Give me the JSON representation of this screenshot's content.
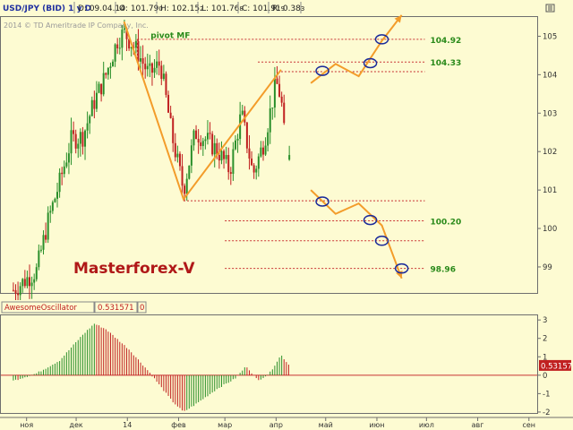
{
  "header": {
    "symbol": "USD/JPY (BID) 1 у D",
    "date": "D: 09.04.14",
    "open": "O: 101.79",
    "open_small": "0",
    "high": "H: 102.15",
    "high_small": "2",
    "low": "L: 101.76",
    "low_small": "8",
    "close": "C: 101.91",
    "close_small": "9",
    "range": "R: 0.38",
    "range_small": "3",
    "copyright": "2014 © TD Ameritrade IP Company, Inc."
  },
  "watermark": "Masterforex-V",
  "indicator_header": {
    "name": "AwesomeOscillator",
    "value": "0.531571",
    "suffix": "0"
  },
  "colors": {
    "background": "#fdfbd2",
    "bullish": "#2a8f2a",
    "bearish": "#c02020",
    "projection": "#f39c2a",
    "level": "#c83232",
    "label_green": "#2a8a1a",
    "watermark": "#b01818"
  },
  "chart_data": [
    {
      "type": "candlestick",
      "title": "USD/JPY (BID) 1 у D",
      "y_ticks": [
        99,
        100,
        101,
        102,
        103,
        104,
        105
      ],
      "ylim": [
        98.3,
        105.5
      ],
      "x_ticks": [
        "ноя",
        "дек",
        "14",
        "фев",
        "мар",
        "апр",
        "май",
        "июн",
        "июл",
        "авг",
        "сен"
      ],
      "levels": [
        {
          "value": 104.92,
          "label": "104.92"
        },
        {
          "value": 104.33,
          "label": "104.33"
        },
        {
          "value": 104.08,
          "label": ""
        },
        {
          "value": 100.72,
          "label": ""
        },
        {
          "value": 100.2,
          "label": "100.20"
        },
        {
          "value": 99.68,
          "label": ""
        },
        {
          "value": 98.96,
          "label": "98.96"
        }
      ],
      "annotations": [
        {
          "text": "pivot MF",
          "value": 104.88
        }
      ],
      "swing_pattern_points": [
        {
          "date": "2013-12-30",
          "value": 105.38
        },
        {
          "date": "2014-02-04",
          "value": 100.76
        },
        {
          "date": "2014-04-04",
          "value": 104.13
        }
      ],
      "projection_up": [
        {
          "date": "2014-04-22",
          "value": 103.78
        },
        {
          "date": "2014-05-07",
          "value": 104.28
        },
        {
          "date": "2014-05-21",
          "value": 103.96
        },
        {
          "date": "2014-06-04",
          "value": 104.88
        },
        {
          "date": "2014-06-16",
          "value": 105.55
        }
      ],
      "projection_down": [
        {
          "date": "2014-04-22",
          "value": 101.0
        },
        {
          "date": "2014-05-07",
          "value": 100.38
        },
        {
          "date": "2014-05-21",
          "value": 100.65
        },
        {
          "date": "2014-06-04",
          "value": 100.08
        },
        {
          "date": "2014-06-16",
          "value": 98.7
        }
      ],
      "projection_markers": [
        {
          "date": "2014-04-29",
          "value": 104.1
        },
        {
          "date": "2014-05-28",
          "value": 104.3
        },
        {
          "date": "2014-06-04",
          "value": 104.92
        },
        {
          "date": "2014-04-29",
          "value": 100.7
        },
        {
          "date": "2014-05-28",
          "value": 100.22
        },
        {
          "date": "2014-06-04",
          "value": 99.68
        },
        {
          "date": "2014-06-16",
          "value": 98.96
        }
      ],
      "last_bar": {
        "open": 101.79,
        "high": 102.15,
        "low": 101.76,
        "close": 101.91
      },
      "ohlc_anchor_closes": [
        {
          "date": "2013-10-24",
          "value": 98.4
        },
        {
          "date": "2013-11-07",
          "value": 98.9
        },
        {
          "date": "2013-11-14",
          "value": 100.2
        },
        {
          "date": "2013-11-21",
          "value": 101.2
        },
        {
          "date": "2013-11-28",
          "value": 102.3
        },
        {
          "date": "2013-12-05",
          "value": 102.4
        },
        {
          "date": "2013-12-12",
          "value": 103.3
        },
        {
          "date": "2013-12-19",
          "value": 104.0
        },
        {
          "date": "2013-12-26",
          "value": 104.9
        },
        {
          "date": "2013-12-30",
          "value": 105.1
        },
        {
          "date": "2014-01-07",
          "value": 104.6
        },
        {
          "date": "2014-01-14",
          "value": 104.0
        },
        {
          "date": "2014-01-21",
          "value": 104.3
        },
        {
          "date": "2014-01-28",
          "value": 102.4
        },
        {
          "date": "2014-02-04",
          "value": 101.0
        },
        {
          "date": "2014-02-11",
          "value": 102.5
        },
        {
          "date": "2014-02-18",
          "value": 102.3
        },
        {
          "date": "2014-02-25",
          "value": 102.0
        },
        {
          "date": "2014-03-04",
          "value": 101.5
        },
        {
          "date": "2014-03-11",
          "value": 103.0
        },
        {
          "date": "2014-03-18",
          "value": 101.4
        },
        {
          "date": "2014-03-25",
          "value": 102.3
        },
        {
          "date": "2014-04-01",
          "value": 103.8
        },
        {
          "date": "2014-04-04",
          "value": 103.4
        },
        {
          "date": "2014-04-07",
          "value": 101.9
        }
      ]
    },
    {
      "type": "bar",
      "title": "AwesomeOscillator",
      "current_value": 0.531571,
      "value_label": "0.53157",
      "y_ticks": [
        -2,
        -1,
        0,
        1,
        2,
        3
      ],
      "ylim": [
        -2.1,
        3.3
      ],
      "ao_anchor_values": [
        {
          "date": "2013-10-24",
          "value": -0.3
        },
        {
          "date": "2013-11-07",
          "value": 0.1
        },
        {
          "date": "2013-11-21",
          "value": 0.8
        },
        {
          "date": "2013-12-05",
          "value": 2.2
        },
        {
          "date": "2013-12-12",
          "value": 2.8
        },
        {
          "date": "2013-12-19",
          "value": 2.5
        },
        {
          "date": "2014-01-02",
          "value": 1.4
        },
        {
          "date": "2014-01-14",
          "value": 0.2
        },
        {
          "date": "2014-01-28",
          "value": -1.4
        },
        {
          "date": "2014-02-04",
          "value": -2.0
        },
        {
          "date": "2014-02-11",
          "value": -1.6
        },
        {
          "date": "2014-02-25",
          "value": -0.7
        },
        {
          "date": "2014-03-07",
          "value": -0.2
        },
        {
          "date": "2014-03-14",
          "value": 0.5
        },
        {
          "date": "2014-03-21",
          "value": -0.3
        },
        {
          "date": "2014-03-28",
          "value": 0.1
        },
        {
          "date": "2014-04-04",
          "value": 1.1
        },
        {
          "date": "2014-04-09",
          "value": 0.53
        }
      ]
    }
  ]
}
